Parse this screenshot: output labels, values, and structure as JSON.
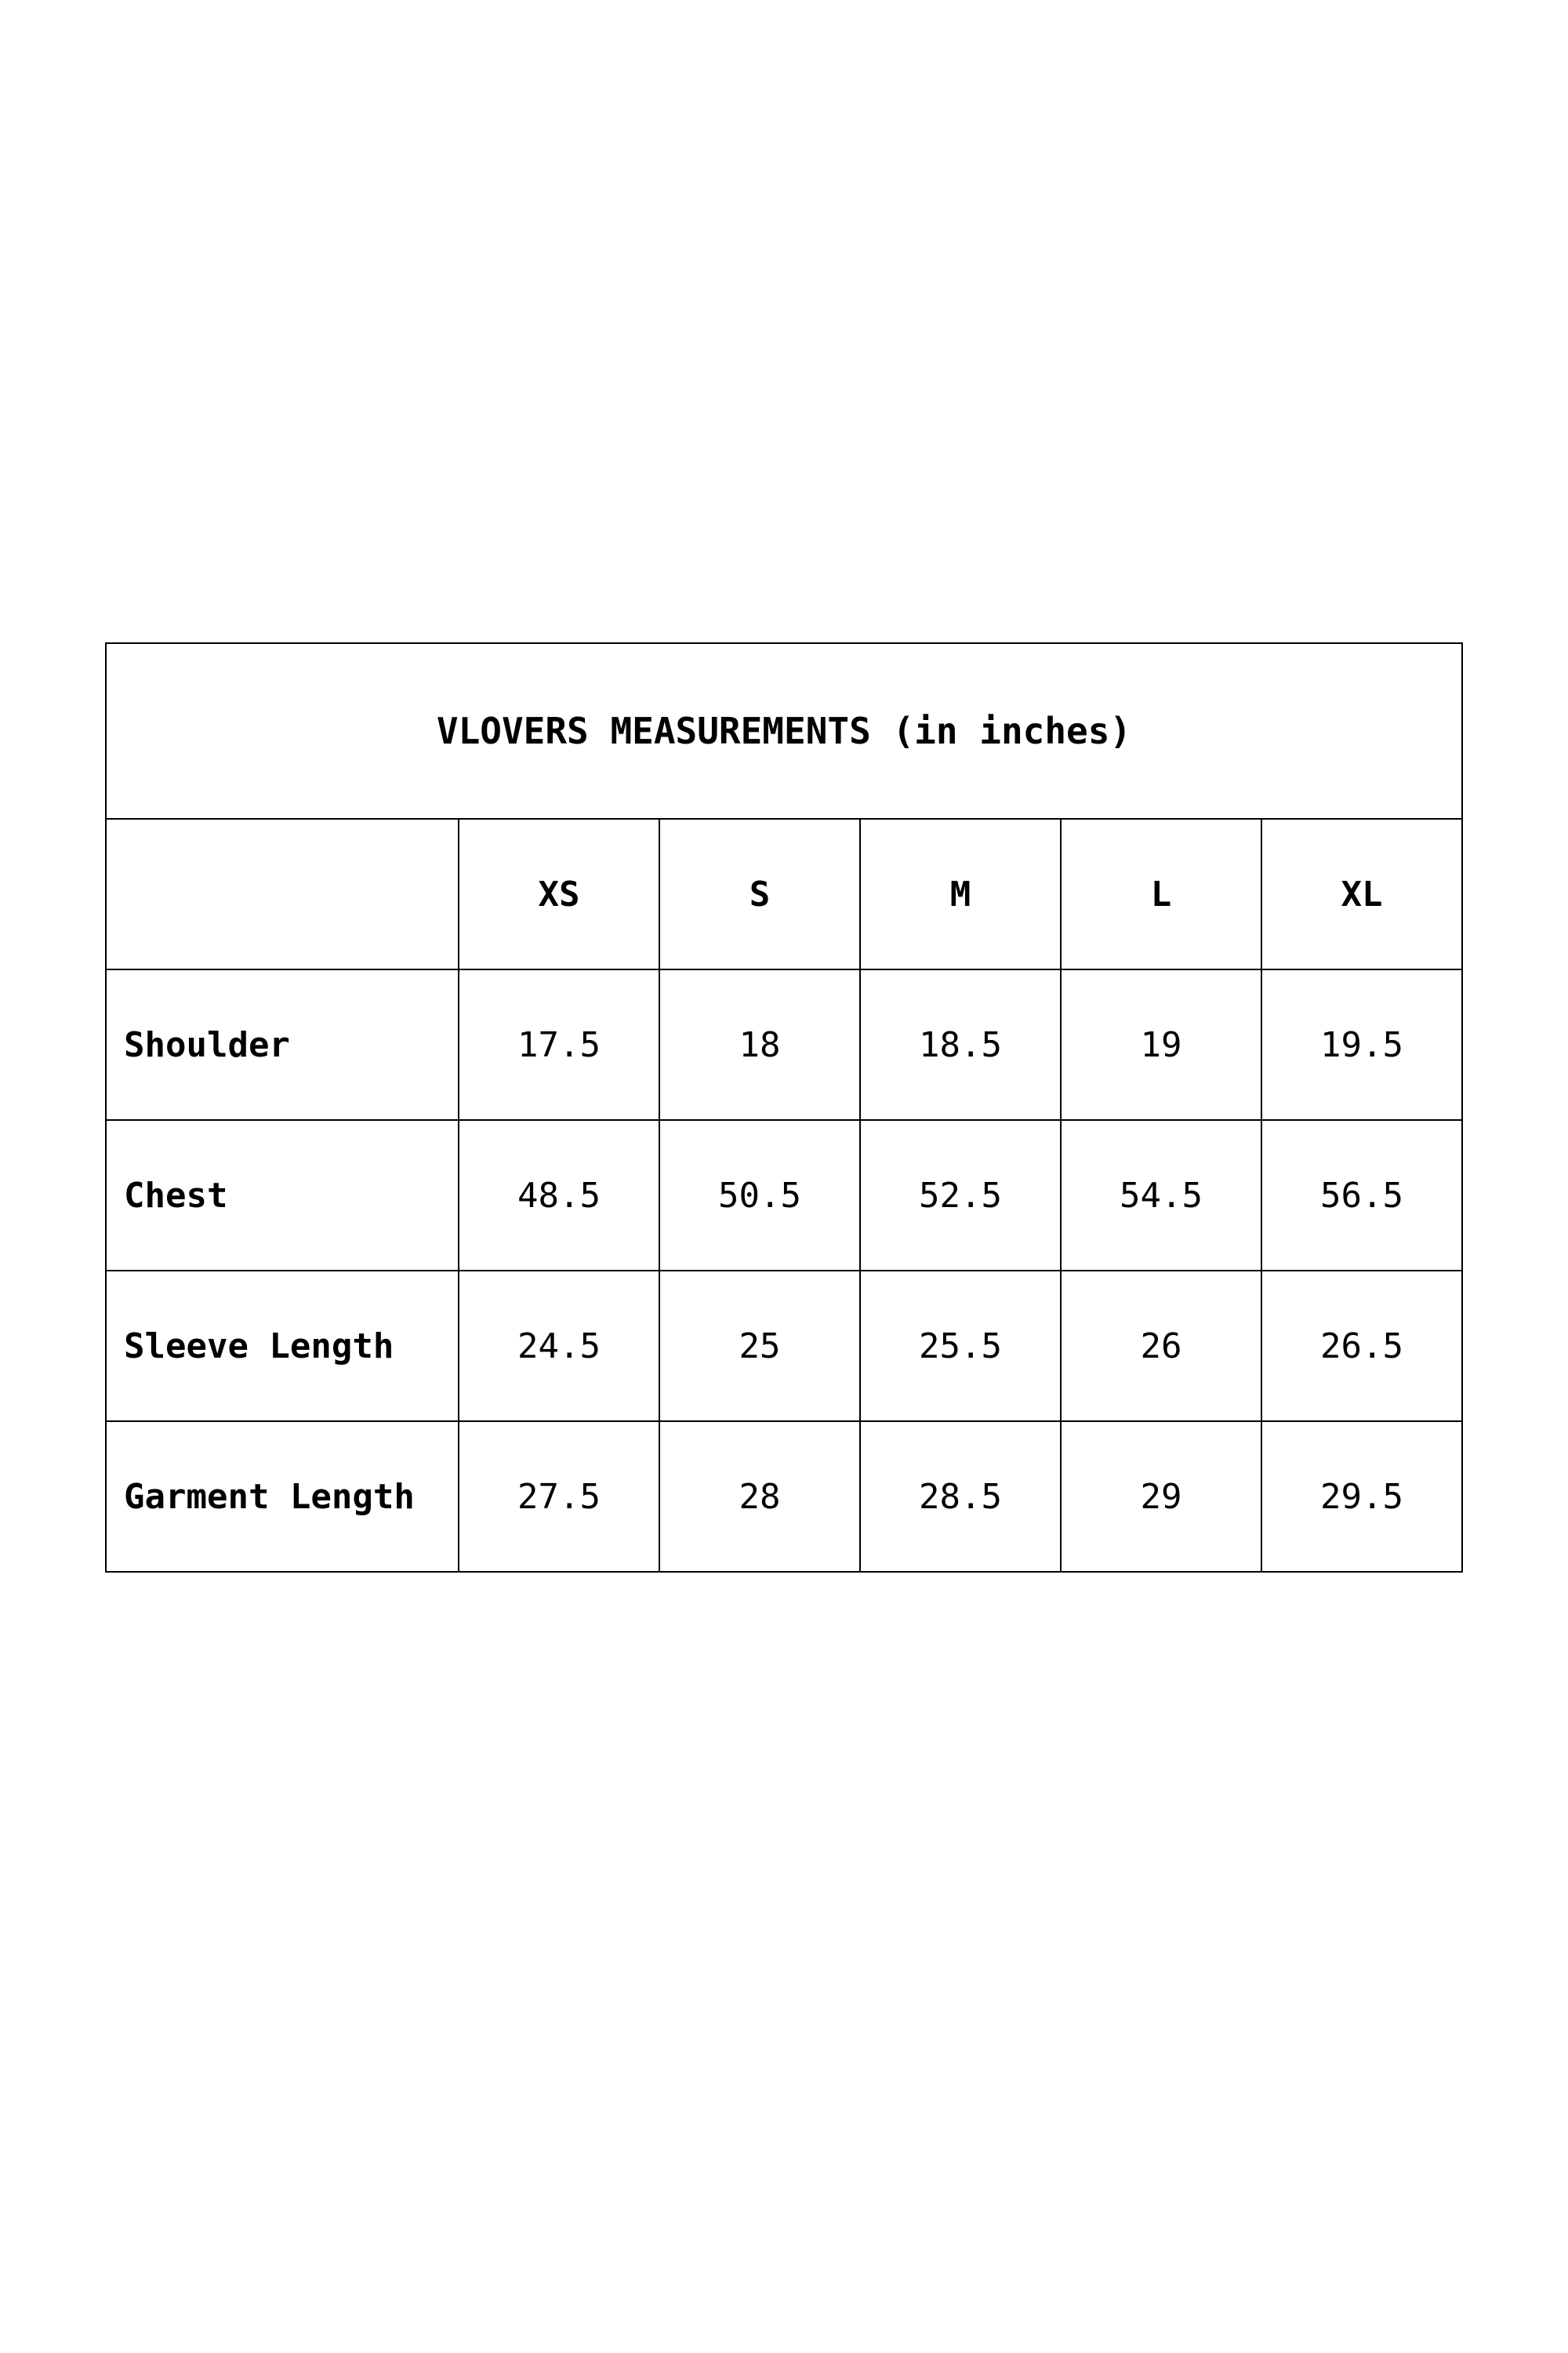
{
  "title": "VLOVERS MEASUREMENTS (in inches)",
  "sizes": [
    "XS",
    "S",
    "M",
    "L",
    "XL"
  ],
  "rows": [
    {
      "label": "Shoulder",
      "values": [
        "17.5",
        "18",
        "18.5",
        "19",
        "19.5"
      ]
    },
    {
      "label": "Chest",
      "values": [
        "48.5",
        "50.5",
        "52.5",
        "54.5",
        "56.5"
      ]
    },
    {
      "label": "Sleeve Length",
      "values": [
        "24.5",
        "25",
        "25.5",
        "26",
        "26.5"
      ]
    },
    {
      "label": "Garment Length",
      "values": [
        "27.5",
        "28",
        "28.5",
        "29",
        "29.5"
      ]
    }
  ]
}
